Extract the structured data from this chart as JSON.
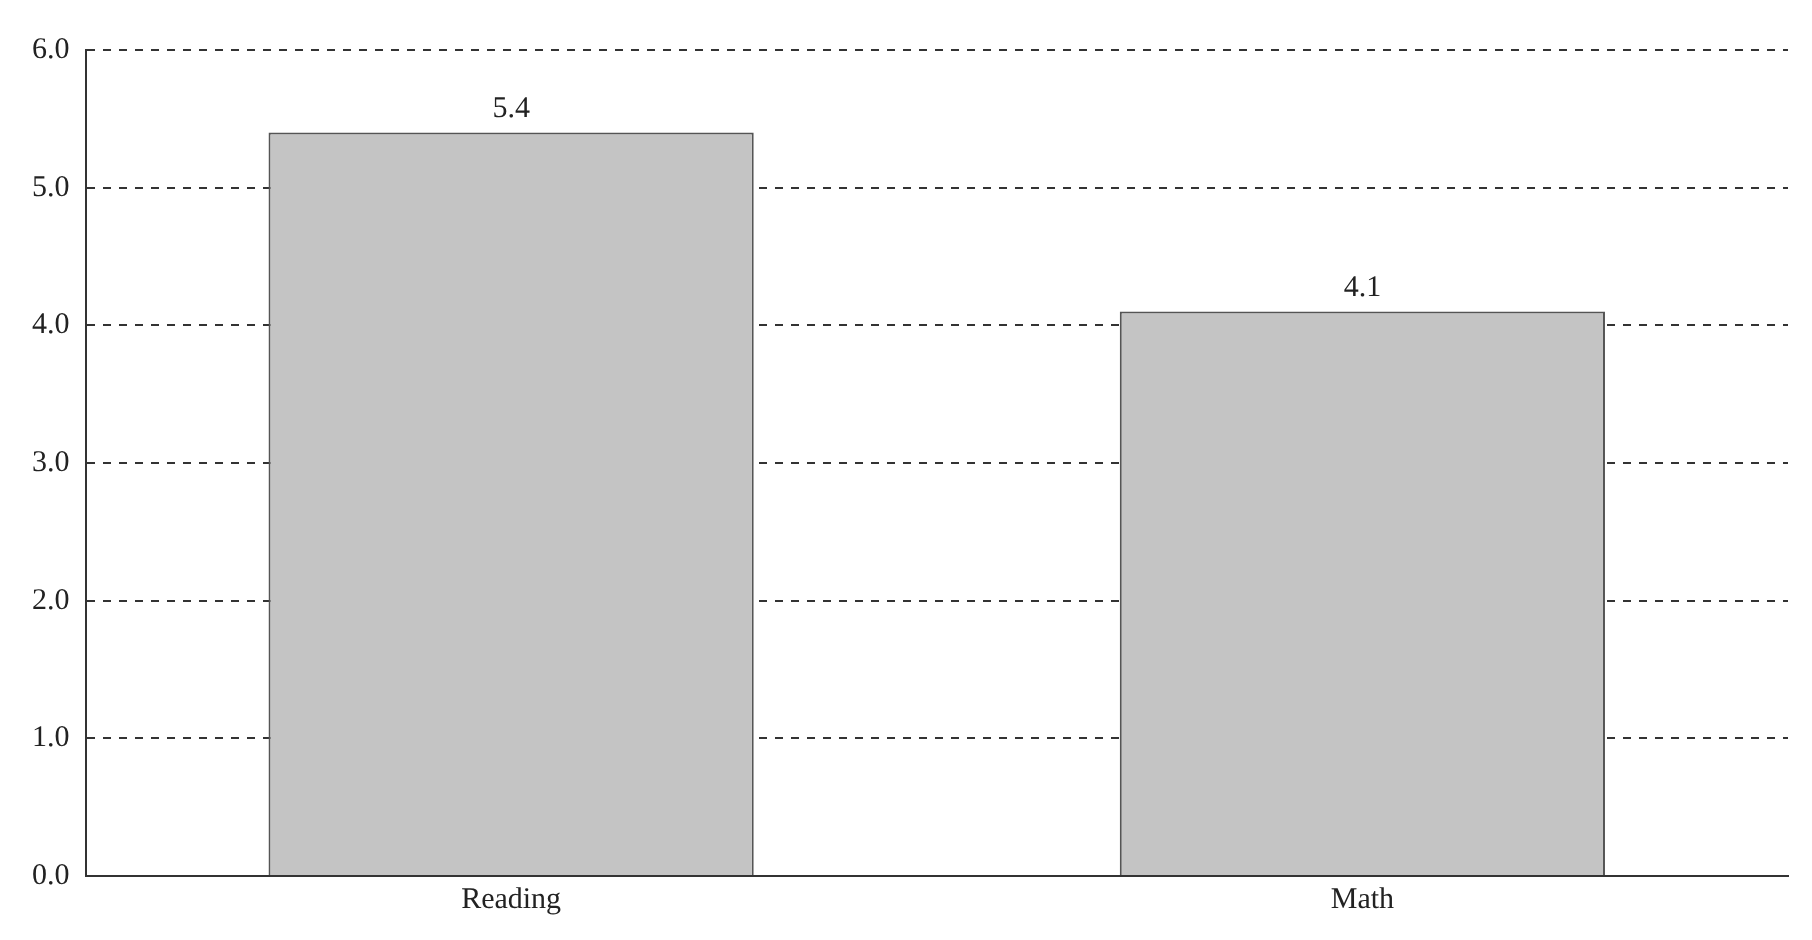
{
  "chart_data": {
    "type": "bar",
    "categories": [
      "Reading",
      "Math"
    ],
    "values": [
      5.4,
      4.1
    ],
    "color": "#c4c4c4",
    "ylim": [
      0,
      6
    ],
    "yticks": [
      {
        "value": 0,
        "label": "0.0"
      },
      {
        "value": 1,
        "label": "1.0"
      },
      {
        "value": 2,
        "label": "2.0"
      },
      {
        "value": 3,
        "label": "3.0"
      },
      {
        "value": 4,
        "label": "4.0"
      },
      {
        "value": 5,
        "label": "5.0"
      },
      {
        "value": 6,
        "label": "6.0"
      }
    ],
    "grid": "y",
    "data_labels": true,
    "legend": false
  }
}
